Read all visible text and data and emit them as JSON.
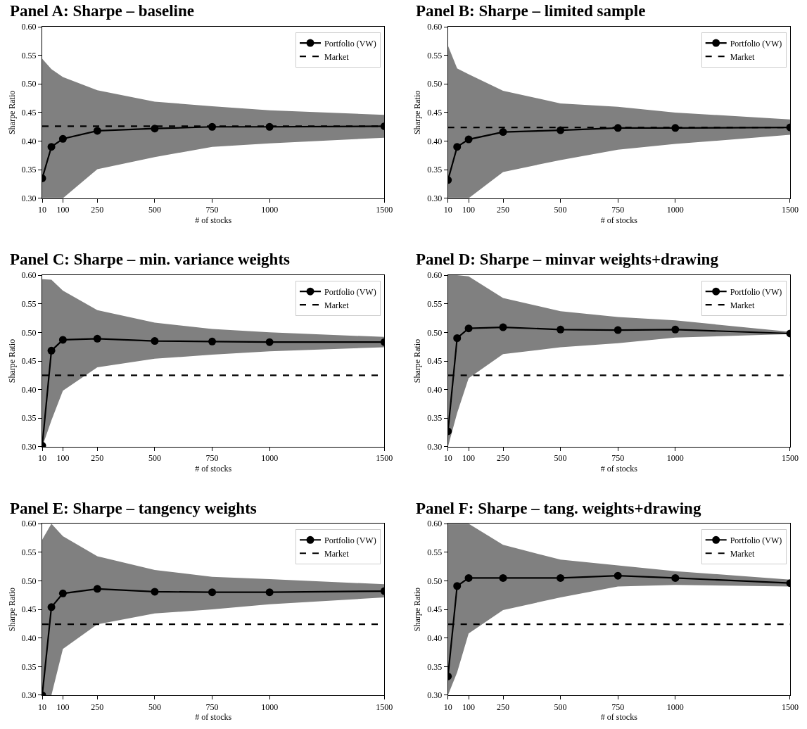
{
  "chart_data": [
    {
      "type": "line",
      "title": "Panel A: Sharpe – baseline",
      "xlabel": "# of stocks",
      "ylabel": "Sharpe Ratio",
      "x": [
        10,
        50,
        100,
        250,
        500,
        750,
        1000,
        1500
      ],
      "xlim": [
        10,
        1500
      ],
      "xticks": [
        10,
        100,
        250,
        500,
        750,
        1000,
        1500
      ],
      "ylim": [
        0.3,
        0.6
      ],
      "yticks": [
        {
          "value": 0.3,
          "label": "0.30"
        },
        {
          "value": 0.35,
          "label": "0.35"
        },
        {
          "value": 0.4,
          "label": "0.40"
        },
        {
          "value": 0.45,
          "label": "0.45"
        },
        {
          "value": 0.5,
          "label": "0.50"
        },
        {
          "value": 0.55,
          "label": "0.55"
        },
        {
          "value": 0.6,
          "label": "0.60"
        }
      ],
      "grid": false,
      "legend": "top right",
      "marker": "circle",
      "series": [
        {
          "name": "Portfolio (VW)",
          "color": "#000000",
          "values": [
            0.335,
            0.39,
            0.404,
            0.418,
            0.422,
            0.425,
            0.425,
            0.426
          ],
          "lower": [
            0.3,
            0.3,
            0.3,
            0.351,
            0.372,
            0.39,
            0.396,
            0.406
          ],
          "upper": [
            0.544,
            0.526,
            0.512,
            0.489,
            0.469,
            0.461,
            0.454,
            0.446
          ]
        }
      ],
      "ref_lines": [
        {
          "axis": "y",
          "value": 0.426,
          "label": "Market",
          "color": "#000000",
          "line_style": "dashed"
        }
      ]
    },
    {
      "type": "line",
      "title": "Panel B: Sharpe – limited sample",
      "xlabel": "# of stocks",
      "ylabel": "Sharpe Ratio",
      "x": [
        10,
        50,
        100,
        250,
        500,
        750,
        1000,
        1500
      ],
      "xlim": [
        10,
        1500
      ],
      "xticks": [
        10,
        100,
        250,
        500,
        750,
        1000,
        1500
      ],
      "ylim": [
        0.3,
        0.6
      ],
      "yticks": [
        {
          "value": 0.3,
          "label": "0.30"
        },
        {
          "value": 0.35,
          "label": "0.35"
        },
        {
          "value": 0.4,
          "label": "0.40"
        },
        {
          "value": 0.45,
          "label": "0.45"
        },
        {
          "value": 0.5,
          "label": "0.50"
        },
        {
          "value": 0.55,
          "label": "0.55"
        },
        {
          "value": 0.6,
          "label": "0.60"
        }
      ],
      "grid": false,
      "legend": "top right",
      "marker": "circle",
      "series": [
        {
          "name": "Portfolio (VW)",
          "color": "#000000",
          "values": [
            0.332,
            0.39,
            0.403,
            0.416,
            0.419,
            0.423,
            0.423,
            0.424
          ],
          "lower": [
            0.3,
            0.3,
            0.3,
            0.346,
            0.367,
            0.385,
            0.395,
            0.411
          ],
          "upper": [
            0.567,
            0.527,
            0.517,
            0.488,
            0.466,
            0.46,
            0.45,
            0.438
          ]
        }
      ],
      "ref_lines": [
        {
          "axis": "y",
          "value": 0.424,
          "label": "Market",
          "color": "#000000",
          "line_style": "dashed"
        }
      ]
    },
    {
      "type": "line",
      "title": "Panel C: Sharpe – min. variance weights",
      "xlabel": "# of stocks",
      "ylabel": "Sharpe Ratio",
      "x": [
        10,
        50,
        100,
        250,
        500,
        750,
        1000,
        1500
      ],
      "xlim": [
        10,
        1500
      ],
      "xticks": [
        10,
        100,
        250,
        500,
        750,
        1000,
        1500
      ],
      "ylim": [
        0.3,
        0.6
      ],
      "yticks": [
        {
          "value": 0.3,
          "label": "0.30"
        },
        {
          "value": 0.35,
          "label": "0.35"
        },
        {
          "value": 0.4,
          "label": "0.40"
        },
        {
          "value": 0.45,
          "label": "0.45"
        },
        {
          "value": 0.5,
          "label": "0.50"
        },
        {
          "value": 0.55,
          "label": "0.55"
        },
        {
          "value": 0.6,
          "label": "0.60"
        }
      ],
      "grid": false,
      "legend": "top right",
      "marker": "circle",
      "series": [
        {
          "name": "Portfolio (VW)",
          "color": "#000000",
          "values": [
            0.302,
            0.468,
            0.487,
            0.489,
            0.485,
            0.484,
            0.483,
            0.483
          ],
          "lower": [
            0.3,
            0.346,
            0.398,
            0.439,
            0.454,
            0.461,
            0.467,
            0.474
          ],
          "upper": [
            0.593,
            0.592,
            0.573,
            0.539,
            0.517,
            0.506,
            0.5,
            0.492
          ]
        }
      ],
      "ref_lines": [
        {
          "axis": "y",
          "value": 0.425,
          "label": "Market",
          "color": "#000000",
          "line_style": "dashed"
        }
      ]
    },
    {
      "type": "line",
      "title": "Panel D: Sharpe – minvar weights+drawing",
      "xlabel": "# of stocks",
      "ylabel": "Sharpe Ratio",
      "x": [
        10,
        50,
        100,
        250,
        500,
        750,
        1000,
        1500
      ],
      "xlim": [
        10,
        1500
      ],
      "xticks": [
        10,
        100,
        250,
        500,
        750,
        1000,
        1500
      ],
      "ylim": [
        0.3,
        0.6
      ],
      "yticks": [
        {
          "value": 0.3,
          "label": "0.30"
        },
        {
          "value": 0.35,
          "label": "0.35"
        },
        {
          "value": 0.4,
          "label": "0.40"
        },
        {
          "value": 0.45,
          "label": "0.45"
        },
        {
          "value": 0.5,
          "label": "0.50"
        },
        {
          "value": 0.55,
          "label": "0.55"
        },
        {
          "value": 0.6,
          "label": "0.60"
        }
      ],
      "grid": false,
      "legend": "top right",
      "marker": "circle",
      "series": [
        {
          "name": "Portfolio (VW)",
          "color": "#000000",
          "values": [
            0.327,
            0.49,
            0.507,
            0.509,
            0.505,
            0.504,
            0.505,
            0.498
          ],
          "lower": [
            0.3,
            0.359,
            0.42,
            0.462,
            0.474,
            0.481,
            0.491,
            0.497
          ],
          "upper": [
            0.6,
            0.6,
            0.598,
            0.56,
            0.537,
            0.527,
            0.521,
            0.501
          ]
        }
      ],
      "ref_lines": [
        {
          "axis": "y",
          "value": 0.425,
          "label": "Market",
          "color": "#000000",
          "line_style": "dashed"
        }
      ]
    },
    {
      "type": "line",
      "title": "Panel E: Sharpe – tangency weights",
      "xlabel": "# of stocks",
      "ylabel": "Sharpe Ratio",
      "x": [
        10,
        50,
        100,
        250,
        500,
        750,
        1000,
        1500
      ],
      "xlim": [
        10,
        1500
      ],
      "xticks": [
        10,
        100,
        250,
        500,
        750,
        1000,
        1500
      ],
      "ylim": [
        0.3,
        0.6
      ],
      "yticks": [
        {
          "value": 0.3,
          "label": "0.30"
        },
        {
          "value": 0.35,
          "label": "0.35"
        },
        {
          "value": 0.4,
          "label": "0.40"
        },
        {
          "value": 0.45,
          "label": "0.45"
        },
        {
          "value": 0.5,
          "label": "0.50"
        },
        {
          "value": 0.55,
          "label": "0.55"
        },
        {
          "value": 0.6,
          "label": "0.60"
        }
      ],
      "grid": false,
      "legend": "top right",
      "marker": "circle",
      "series": [
        {
          "name": "Portfolio (VW)",
          "color": "#000000",
          "values": [
            0.3,
            0.454,
            0.478,
            0.486,
            0.481,
            0.48,
            0.48,
            0.482
          ],
          "lower": [
            0.3,
            0.3,
            0.381,
            0.424,
            0.443,
            0.45,
            0.459,
            0.471
          ],
          "upper": [
            0.572,
            0.6,
            0.578,
            0.543,
            0.519,
            0.507,
            0.503,
            0.494
          ]
        }
      ],
      "ref_lines": [
        {
          "axis": "y",
          "value": 0.424,
          "label": "Market",
          "color": "#000000",
          "line_style": "dashed"
        }
      ]
    },
    {
      "type": "line",
      "title": "Panel F: Sharpe – tang. weights+drawing",
      "xlabel": "# of stocks",
      "ylabel": "Sharpe Ratio",
      "x": [
        10,
        50,
        100,
        250,
        500,
        750,
        1000,
        1500
      ],
      "xlim": [
        10,
        1500
      ],
      "xticks": [
        10,
        100,
        250,
        500,
        750,
        1000,
        1500
      ],
      "ylim": [
        0.3,
        0.6
      ],
      "yticks": [
        {
          "value": 0.3,
          "label": "0.30"
        },
        {
          "value": 0.35,
          "label": "0.35"
        },
        {
          "value": 0.4,
          "label": "0.40"
        },
        {
          "value": 0.45,
          "label": "0.45"
        },
        {
          "value": 0.5,
          "label": "0.50"
        },
        {
          "value": 0.55,
          "label": "0.55"
        },
        {
          "value": 0.6,
          "label": "0.60"
        }
      ],
      "grid": false,
      "legend": "top right",
      "marker": "circle",
      "series": [
        {
          "name": "Portfolio (VW)",
          "color": "#000000",
          "values": [
            0.333,
            0.491,
            0.505,
            0.505,
            0.505,
            0.509,
            0.505,
            0.496
          ],
          "lower": [
            0.3,
            0.34,
            0.408,
            0.449,
            0.471,
            0.49,
            0.493,
            0.49
          ],
          "upper": [
            0.6,
            0.6,
            0.6,
            0.563,
            0.537,
            0.527,
            0.517,
            0.502
          ]
        }
      ],
      "ref_lines": [
        {
          "axis": "y",
          "value": 0.424,
          "label": "Market",
          "color": "#000000",
          "line_style": "dashed"
        }
      ]
    }
  ]
}
